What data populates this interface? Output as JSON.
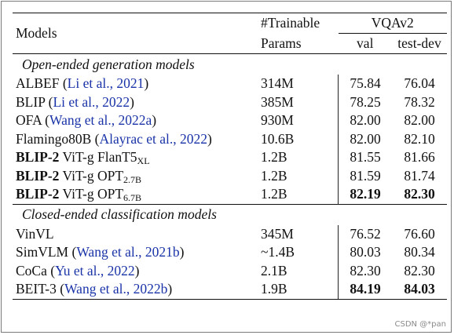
{
  "header": {
    "models": "Models",
    "params_line1": "#Trainable",
    "params_line2": "Params",
    "vqa": "VQAv2",
    "val": "val",
    "testdev": "test-dev"
  },
  "sections": {
    "open": "Open-ended generation models",
    "closed": "Closed-ended classification models"
  },
  "open_rows": [
    {
      "name": "ALBEF",
      "cite": "Li et al., 2021",
      "params": "314M",
      "val": "75.84",
      "test": "76.04"
    },
    {
      "name": "BLIP",
      "cite": "Li et al., 2022",
      "params": "385M",
      "val": "78.25",
      "test": "78.32"
    },
    {
      "name": "OFA",
      "cite": "Wang et al., 2022a",
      "params": "930M",
      "val": "82.00",
      "test": "82.00"
    },
    {
      "name": "Flamingo80B",
      "cite": "Alayrac et al., 2022",
      "params": "10.6B",
      "val": "82.00",
      "test": "82.10"
    },
    {
      "bold": "BLIP-2",
      "name": "ViT-g FlanT5",
      "sub": "XL",
      "params": "1.2B",
      "val": "81.55",
      "test": "81.66"
    },
    {
      "bold": "BLIP-2",
      "name": "ViT-g OPT",
      "sub": "2.7B",
      "params": "1.2B",
      "val": "81.59",
      "test": "81.74"
    },
    {
      "bold": "BLIP-2",
      "name": "ViT-g OPT",
      "sub": "6.7B",
      "params": "1.2B",
      "val": "82.19",
      "test": "82.30"
    }
  ],
  "closed_rows": [
    {
      "name": "VinVL",
      "params": "345M",
      "val": "76.52",
      "test": "76.60"
    },
    {
      "name": "SimVLM",
      "cite": "Wang et al., 2021b",
      "params": "~1.4B",
      "val": "80.03",
      "test": "80.34"
    },
    {
      "name": "CoCa",
      "cite": "Yu et al., 2022",
      "params": "2.1B",
      "val": "82.30",
      "test": "82.30"
    },
    {
      "name": "BEIT-3",
      "cite": "Wang et al., 2022b",
      "params": "1.9B",
      "val": "84.19",
      "test": "84.03"
    }
  ],
  "watermark": "CSDN @*pan"
}
